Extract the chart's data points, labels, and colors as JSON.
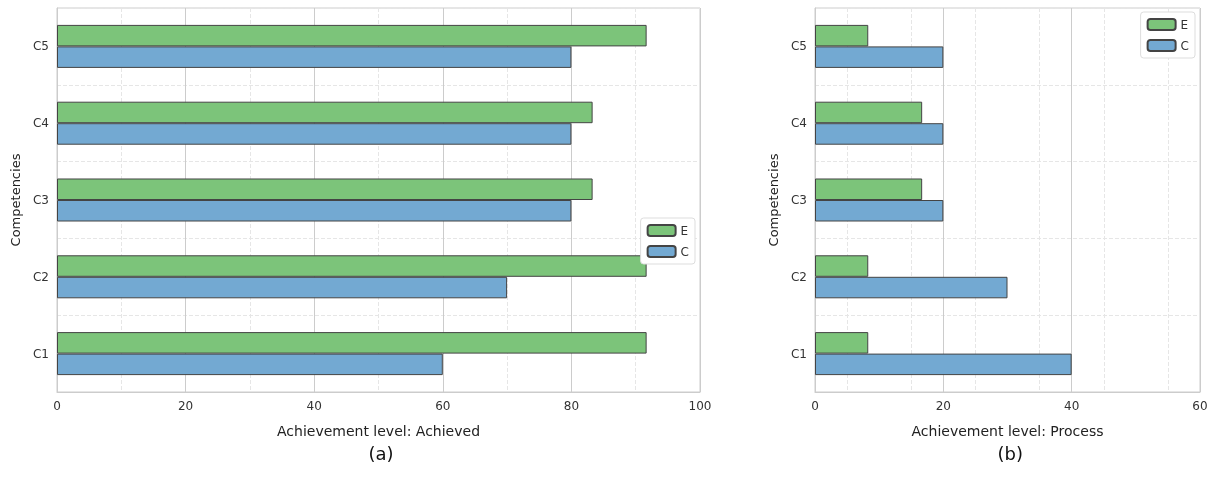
{
  "chart_data": [
    {
      "type": "bar",
      "orientation": "horizontal",
      "xlabel": "Achievement level: Achieved",
      "ylabel": "Competencies",
      "annotations": [
        "(a)"
      ],
      "categories": [
        "C5",
        "C4",
        "C3",
        "C2",
        "C1"
      ],
      "series": [
        {
          "name": "E",
          "color": "#7cc47a",
          "values": [
            91.7,
            83.3,
            83.3,
            91.7,
            91.7
          ]
        },
        {
          "name": "C",
          "color": "#73a9d2",
          "values": [
            80,
            80,
            80,
            70,
            60
          ]
        }
      ],
      "xlim": [
        0,
        100
      ],
      "xticks": [
        0,
        20,
        40,
        60,
        80,
        100
      ],
      "grid": true,
      "legend": "right"
    },
    {
      "type": "bar",
      "orientation": "horizontal",
      "xlabel": "Achievement level: Process",
      "ylabel": "Competencies",
      "annotations": [
        "(b)"
      ],
      "categories": [
        "C5",
        "C4",
        "C3",
        "C2",
        "C1"
      ],
      "series": [
        {
          "name": "E",
          "color": "#7cc47a",
          "values": [
            8.3,
            16.7,
            16.7,
            8.3,
            8.3
          ]
        },
        {
          "name": "C",
          "color": "#73a9d2",
          "values": [
            20,
            20,
            20,
            30,
            40
          ]
        }
      ],
      "xlim": [
        0,
        60
      ],
      "xticks": [
        0,
        20,
        40,
        60
      ],
      "grid": true,
      "legend": "top right"
    }
  ]
}
